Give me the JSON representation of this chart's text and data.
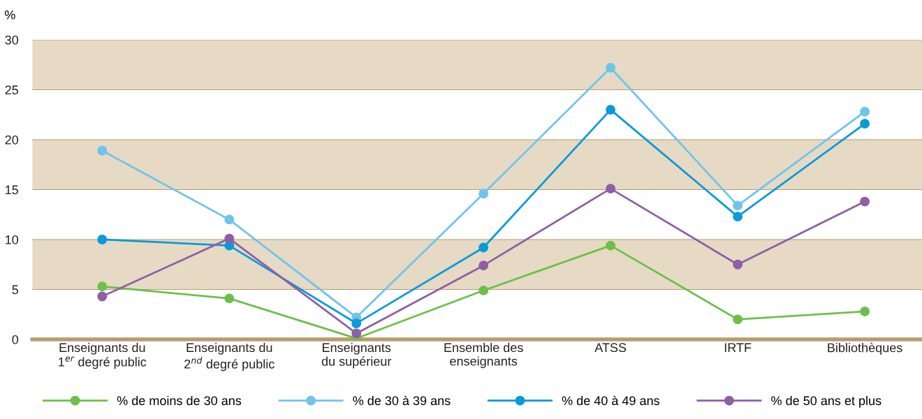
{
  "chart_data": {
    "type": "line",
    "ylabel": "%",
    "categories": [
      "Enseignants du\n1$^{er}$ degré public",
      "Enseignants du\n2$^{nd}$ degré public",
      "Enseignants\ndu supérieur",
      "Ensemble des\nenseignants",
      "ATSS",
      "IRTF",
      "Bibliothèques"
    ],
    "ylim": [
      0,
      30
    ],
    "yticks": [
      0,
      5,
      10,
      15,
      20,
      25,
      30
    ],
    "grid": "y",
    "marker": "circle",
    "line_style": "solid",
    "legend": "bottom",
    "bands": [
      {
        "axis": "y",
        "from": 5,
        "to": 10,
        "color": "#e6dac4"
      },
      {
        "axis": "y",
        "from": 15,
        "to": 20,
        "color": "#e6dac4"
      },
      {
        "axis": "y",
        "from": 25,
        "to": 30,
        "color": "#e6dac4"
      }
    ],
    "series": [
      {
        "name": "% de moins de 30 ans",
        "color": "#6cc04a",
        "values": [
          5.3,
          4.1,
          0.1,
          4.9,
          9.4,
          2.0,
          2.8
        ]
      },
      {
        "name": "% de 30 à 39 ans",
        "color": "#6fc4ec",
        "values": [
          18.9,
          12.0,
          2.2,
          14.6,
          27.2,
          13.4,
          22.8
        ]
      },
      {
        "name": "% de 40 à 49 ans",
        "color": "#0a9ad8",
        "values": [
          10.0,
          9.4,
          1.6,
          9.2,
          23.0,
          12.3,
          21.6
        ]
      },
      {
        "name": "% de 50 ans et plus",
        "color": "#8e5ea7",
        "values": [
          4.3,
          10.1,
          0.6,
          7.4,
          15.1,
          7.5,
          13.8
        ]
      }
    ]
  }
}
